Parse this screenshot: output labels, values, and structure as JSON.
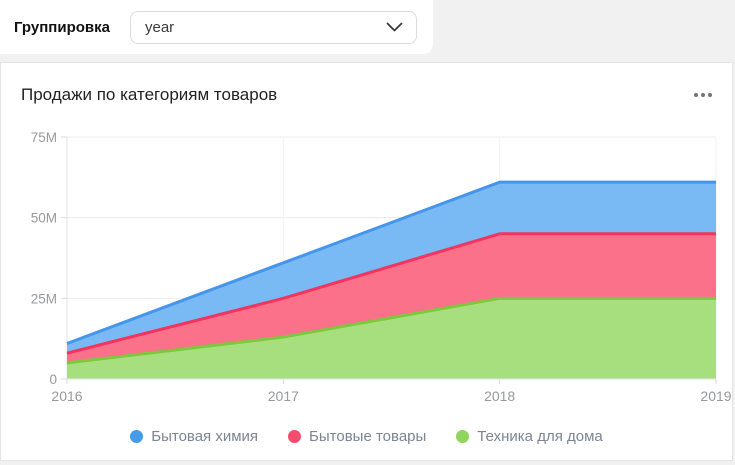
{
  "toolbar": {
    "grouping_label": "Группировка",
    "grouping_value": "year"
  },
  "card": {
    "title": "Продажи по категориям товаров"
  },
  "chart_data": {
    "type": "area",
    "stacked": true,
    "title": "Продажи по категориям товаров",
    "x": [
      "2016",
      "2017",
      "2018",
      "2019"
    ],
    "series": [
      {
        "name": "Бытовая химия",
        "values_m": [
          3,
          11,
          16,
          16
        ],
        "line_color": "#4596ea",
        "fill_color": "#79b9f4",
        "dot_color": "#459be8"
      },
      {
        "name": "Бытовые товары",
        "values_m": [
          3,
          12,
          20,
          20
        ],
        "line_color": "#f5335f",
        "fill_color": "#fb7189",
        "dot_color": "#f74c6e"
      },
      {
        "name": "Техника для дома",
        "values_m": [
          5,
          13,
          25,
          25
        ],
        "line_color": "#7cc83e",
        "fill_color": "#a7df7f",
        "dot_color": "#8ed65f"
      }
    ],
    "stacking_order_bottom_to_top": [
      "Техника для дома",
      "Бытовые товары",
      "Бытовая химия"
    ],
    "unit": "M",
    "ylim_m": [
      0,
      75
    ],
    "y_ticks": [
      "0",
      "25M",
      "50M",
      "75M"
    ],
    "grid": true,
    "legend_position": "bottom"
  }
}
